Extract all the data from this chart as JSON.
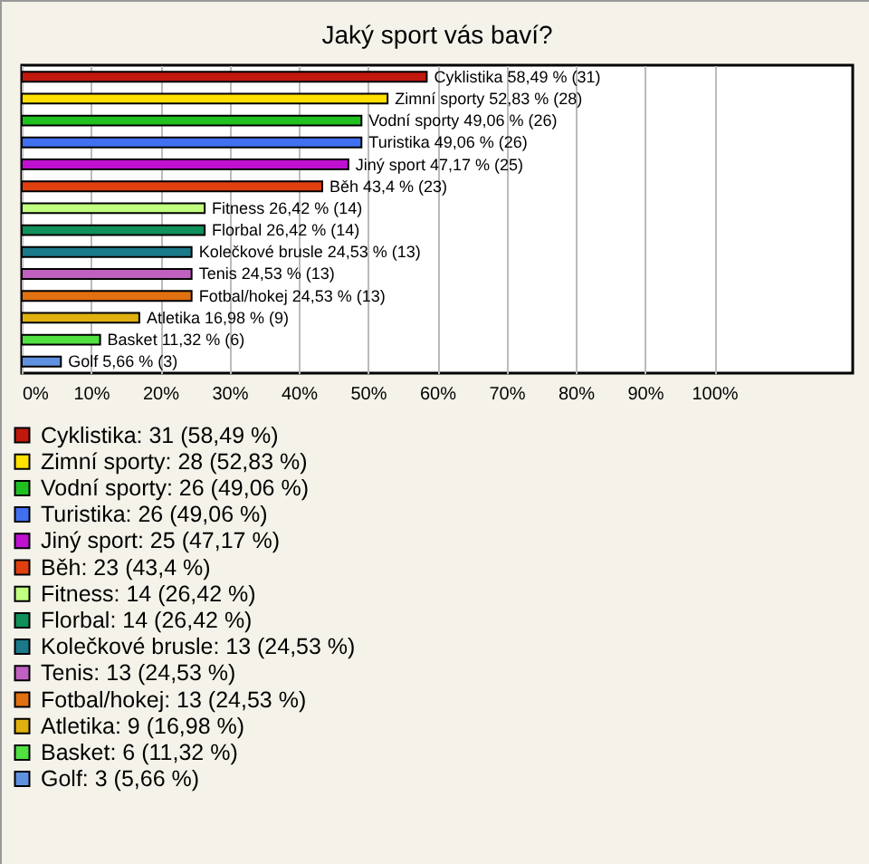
{
  "chart_data": {
    "type": "bar",
    "orientation": "horizontal",
    "title": "Jaký sport vás baví?",
    "categories": [
      null,
      null,
      null,
      null,
      null,
      null,
      null,
      null,
      null,
      null,
      null,
      null,
      null,
      null
    ],
    "series": [
      {
        "name": "Cyklistika: 31 (58,49 %)",
        "color": "#c0180c",
        "values": [
          58.49,
          null,
          null,
          null,
          null,
          null,
          null,
          null,
          null,
          null,
          null,
          null,
          null,
          null
        ],
        "value_labels": [
          "Cyklistika 58,49 % (31)",
          null,
          null,
          null,
          null,
          null,
          null,
          null,
          null,
          null,
          null,
          null,
          null,
          null
        ]
      },
      {
        "name": "Zimní sporty: 28 (52,83 %)",
        "color": "#ffe000",
        "values": [
          null,
          52.83,
          null,
          null,
          null,
          null,
          null,
          null,
          null,
          null,
          null,
          null,
          null,
          null
        ],
        "value_labels": [
          null,
          "Zimní sporty 52,83 % (28)",
          null,
          null,
          null,
          null,
          null,
          null,
          null,
          null,
          null,
          null,
          null,
          null
        ]
      },
      {
        "name": "Vodní sporty: 26 (49,06 %)",
        "color": "#20c020",
        "values": [
          null,
          null,
          49.06,
          null,
          null,
          null,
          null,
          null,
          null,
          null,
          null,
          null,
          null,
          null
        ],
        "value_labels": [
          null,
          null,
          "Vodní sporty 49,06 % (26)",
          null,
          null,
          null,
          null,
          null,
          null,
          null,
          null,
          null,
          null,
          null
        ]
      },
      {
        "name": "Turistika: 26 (49,06 %)",
        "color": "#4070f0",
        "values": [
          null,
          null,
          null,
          49.06,
          null,
          null,
          null,
          null,
          null,
          null,
          null,
          null,
          null,
          null
        ],
        "value_labels": [
          null,
          null,
          null,
          "Turistika 49,06 % (26)",
          null,
          null,
          null,
          null,
          null,
          null,
          null,
          null,
          null,
          null
        ]
      },
      {
        "name": "Jiný sport: 25 (47,17 %)",
        "color": "#c010d0",
        "values": [
          null,
          null,
          null,
          null,
          47.17,
          null,
          null,
          null,
          null,
          null,
          null,
          null,
          null,
          null
        ],
        "value_labels": [
          null,
          null,
          null,
          null,
          "Jiný sport 47,17 % (25)",
          null,
          null,
          null,
          null,
          null,
          null,
          null,
          null,
          null
        ]
      },
      {
        "name": "Běh: 23 (43,4 %)",
        "color": "#e04010",
        "values": [
          null,
          null,
          null,
          null,
          null,
          43.4,
          null,
          null,
          null,
          null,
          null,
          null,
          null,
          null
        ],
        "value_labels": [
          null,
          null,
          null,
          null,
          null,
          "Běh 43,4 % (23)",
          null,
          null,
          null,
          null,
          null,
          null,
          null,
          null
        ]
      },
      {
        "name": "Fitness: 14 (26,42 %)",
        "color": "#c0ff80",
        "values": [
          null,
          null,
          null,
          null,
          null,
          null,
          26.42,
          null,
          null,
          null,
          null,
          null,
          null,
          null
        ],
        "value_labels": [
          null,
          null,
          null,
          null,
          null,
          null,
          "Fitness 26,42 % (14)",
          null,
          null,
          null,
          null,
          null,
          null,
          null
        ]
      },
      {
        "name": "Florbal: 14 (26,42 %)",
        "color": "#10905a",
        "values": [
          null,
          null,
          null,
          null,
          null,
          null,
          null,
          26.42,
          null,
          null,
          null,
          null,
          null,
          null
        ],
        "value_labels": [
          null,
          null,
          null,
          null,
          null,
          null,
          null,
          "Florbal 26,42 % (14)",
          null,
          null,
          null,
          null,
          null,
          null
        ]
      },
      {
        "name": "Kolečkové brusle: 13 (24,53 %)",
        "color": "#1a7a8a",
        "values": [
          null,
          null,
          null,
          null,
          null,
          null,
          null,
          null,
          24.53,
          null,
          null,
          null,
          null,
          null
        ],
        "value_labels": [
          null,
          null,
          null,
          null,
          null,
          null,
          null,
          null,
          "Kolečkové brusle 24,53 % (13)",
          null,
          null,
          null,
          null,
          null
        ]
      },
      {
        "name": "Tenis: 13 (24,53 %)",
        "color": "#c060c0",
        "values": [
          null,
          null,
          null,
          null,
          null,
          null,
          null,
          null,
          null,
          24.53,
          null,
          null,
          null,
          null
        ],
        "value_labels": [
          null,
          null,
          null,
          null,
          null,
          null,
          null,
          null,
          null,
          "Tenis 24,53 % (13)",
          null,
          null,
          null,
          null
        ]
      },
      {
        "name": "Fotbal/hokej: 13 (24,53 %)",
        "color": "#e07010",
        "values": [
          null,
          null,
          null,
          null,
          null,
          null,
          null,
          null,
          null,
          null,
          24.53,
          null,
          null,
          null
        ],
        "value_labels": [
          null,
          null,
          null,
          null,
          null,
          null,
          null,
          null,
          null,
          null,
          "Fotbal/hokej 24,53 % (13)",
          null,
          null,
          null
        ]
      },
      {
        "name": "Atletika: 9 (16,98 %)",
        "color": "#e0b010",
        "values": [
          null,
          null,
          null,
          null,
          null,
          null,
          null,
          null,
          null,
          null,
          null,
          16.98,
          null,
          null
        ],
        "value_labels": [
          null,
          null,
          null,
          null,
          null,
          null,
          null,
          null,
          null,
          null,
          null,
          "Atletika 16,98 % (9)",
          null,
          null
        ]
      },
      {
        "name": "Basket: 6 (11,32 %)",
        "color": "#50e040",
        "values": [
          null,
          null,
          null,
          null,
          null,
          null,
          null,
          null,
          null,
          null,
          null,
          null,
          11.32,
          null
        ],
        "value_labels": [
          null,
          null,
          null,
          null,
          null,
          null,
          null,
          null,
          null,
          null,
          null,
          null,
          "Basket 11,32 % (6)",
          null
        ]
      },
      {
        "name": "Golf: 3 (5,66 %)",
        "color": "#6090e0",
        "values": [
          null,
          null,
          null,
          null,
          null,
          null,
          null,
          null,
          null,
          null,
          null,
          null,
          null,
          5.66
        ],
        "value_labels": [
          null,
          null,
          null,
          null,
          null,
          null,
          null,
          null,
          null,
          null,
          null,
          null,
          null,
          "Golf 5,66 % (3)"
        ]
      }
    ],
    "xlim": [
      0,
      120
    ],
    "xticks": [
      {
        "value": 0,
        "label": "0%"
      },
      {
        "value": 10,
        "label": "10%"
      },
      {
        "value": 20,
        "label": "20%"
      },
      {
        "value": 30,
        "label": "30%"
      },
      {
        "value": 40,
        "label": "40%"
      },
      {
        "value": 50,
        "label": "50%"
      },
      {
        "value": 60,
        "label": "60%"
      },
      {
        "value": 70,
        "label": "70%"
      },
      {
        "value": 80,
        "label": "80%"
      },
      {
        "value": 90,
        "label": "90%"
      },
      {
        "value": 100,
        "label": "100%"
      }
    ],
    "grid": "x",
    "tick_labels": "x",
    "legend": "bottom"
  }
}
